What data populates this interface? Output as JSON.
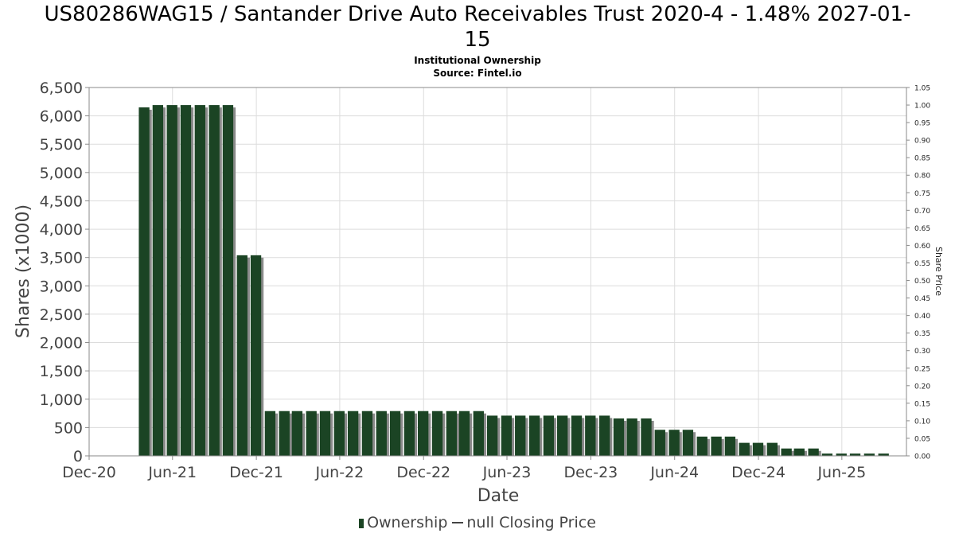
{
  "header": {
    "title_line1": "US80286WAG15 / Santander Drive Auto Receivables Trust 2020-4 - 1.48% 2027-01-",
    "title_line2": "15",
    "subtitle_line1": "Institutional Ownership",
    "subtitle_line2": "Source: Fintel.io"
  },
  "legend": {
    "ownership": "Ownership",
    "price": "null Closing Price"
  },
  "colors": {
    "bar": "#1b4424",
    "bar_shadow": "#8a8a8a",
    "grid": "#dcdcdc"
  },
  "chart_data": {
    "type": "bar",
    "xlabel": "Date",
    "ylabel": "Shares (x1000)",
    "y2label": "Share Price",
    "ylim": [
      0,
      6500
    ],
    "y2lim": [
      0,
      1.05
    ],
    "xlim": [
      "2020-12-01",
      "2025-10-20"
    ],
    "grid": true,
    "legend_position": "bottom",
    "y_ticks": [
      "0",
      "500",
      "1,000",
      "1,500",
      "2,000",
      "2,500",
      "3,000",
      "3,500",
      "4,000",
      "4,500",
      "5,000",
      "5,500",
      "6,000",
      "6,500"
    ],
    "y2_ticks": [
      "0.00",
      "0.05",
      "0.10",
      "0.15",
      "0.20",
      "0.25",
      "0.30",
      "0.35",
      "0.40",
      "0.45",
      "0.50",
      "0.55",
      "0.60",
      "0.65",
      "0.70",
      "0.75",
      "0.80",
      "0.85",
      "0.90",
      "0.95",
      "1.00",
      "1.05"
    ],
    "x_ticks": [
      {
        "label": "Dec-20",
        "date": "2020-12-01"
      },
      {
        "label": "Jun-21",
        "date": "2021-06-01"
      },
      {
        "label": "Dec-21",
        "date": "2021-12-01"
      },
      {
        "label": "Jun-22",
        "date": "2022-06-01"
      },
      {
        "label": "Dec-22",
        "date": "2022-12-01"
      },
      {
        "label": "Jun-23",
        "date": "2023-06-01"
      },
      {
        "label": "Dec-23",
        "date": "2023-12-01"
      },
      {
        "label": "Jun-24",
        "date": "2024-06-01"
      },
      {
        "label": "Dec-24",
        "date": "2024-12-01"
      },
      {
        "label": "Jun-25",
        "date": "2025-06-01"
      }
    ],
    "series": [
      {
        "name": "Ownership",
        "x": [
          "2021-03-31",
          "2021-04-30",
          "2021-05-31",
          "2021-06-30",
          "2021-07-31",
          "2021-08-31",
          "2021-09-30",
          "2021-10-31",
          "2021-11-30",
          "2021-12-31",
          "2022-01-31",
          "2022-02-28",
          "2022-03-31",
          "2022-04-30",
          "2022-05-31",
          "2022-06-30",
          "2022-07-31",
          "2022-08-31",
          "2022-09-30",
          "2022-10-31",
          "2022-11-30",
          "2022-12-31",
          "2023-01-31",
          "2023-02-28",
          "2023-03-31",
          "2023-04-30",
          "2023-05-31",
          "2023-06-30",
          "2023-07-31",
          "2023-08-31",
          "2023-09-30",
          "2023-10-31",
          "2023-11-30",
          "2023-12-31",
          "2024-01-31",
          "2024-02-29",
          "2024-03-31",
          "2024-04-30",
          "2024-05-31",
          "2024-06-30",
          "2024-07-31",
          "2024-08-31",
          "2024-09-30",
          "2024-10-31",
          "2024-11-30",
          "2024-12-31",
          "2025-01-31",
          "2025-02-28",
          "2025-03-31",
          "2025-04-30",
          "2025-05-31",
          "2025-06-30",
          "2025-07-31",
          "2025-08-31"
        ],
        "values": [
          6150,
          6190,
          6190,
          6190,
          6190,
          6190,
          6190,
          3540,
          3540,
          790,
          790,
          790,
          790,
          790,
          790,
          790,
          790,
          790,
          790,
          790,
          790,
          790,
          790,
          790,
          790,
          710,
          710,
          710,
          710,
          710,
          710,
          710,
          710,
          710,
          660,
          660,
          660,
          460,
          460,
          460,
          340,
          340,
          340,
          230,
          230,
          230,
          130,
          130,
          130,
          40,
          40,
          40,
          40,
          40
        ]
      },
      {
        "name": "null Closing Price",
        "x": [],
        "values": []
      }
    ]
  }
}
